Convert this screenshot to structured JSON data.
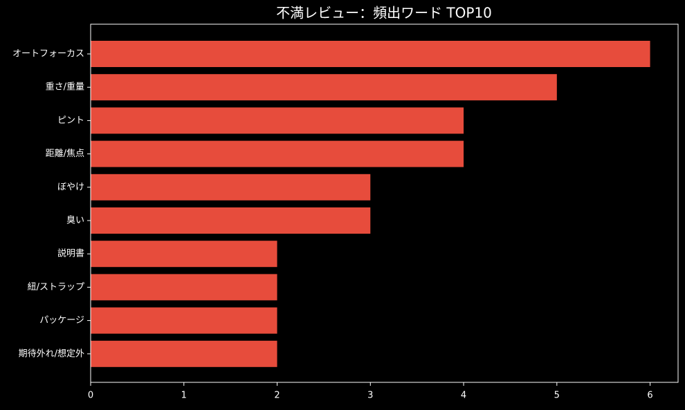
{
  "chart_data": {
    "type": "barh",
    "title": "不満レビュー：頻出ワード TOP10",
    "categories": [
      "オートフォーカス",
      "重さ/重量",
      "ピント",
      "距離/焦点",
      "ぼやけ",
      "臭い",
      "説明書",
      "紐/ストラップ",
      "パッケージ",
      "期待外れ/想定外"
    ],
    "values": [
      6,
      5,
      4,
      4,
      3,
      3,
      2,
      2,
      2,
      2
    ],
    "color": "#e74c3c",
    "xlim": [
      0,
      6.3
    ],
    "xticks": [
      0,
      1,
      2,
      3,
      4,
      5,
      6
    ]
  }
}
